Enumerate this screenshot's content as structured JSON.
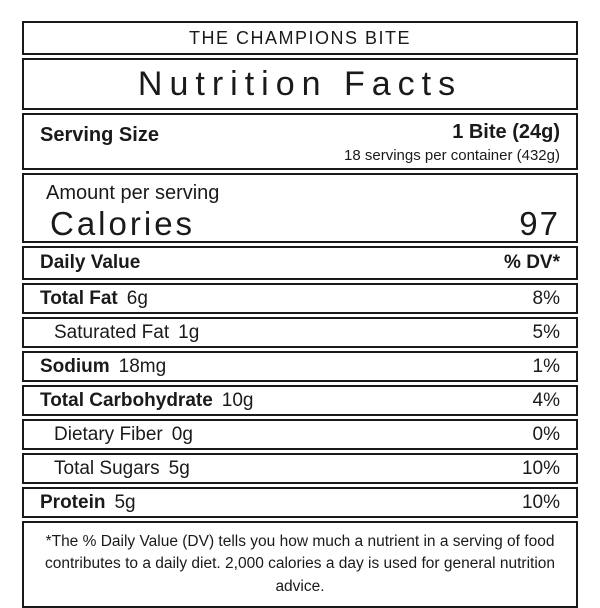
{
  "brand": {
    "title": "THE CHAMPIONS BITE"
  },
  "label": {
    "title": "Nutrition Facts",
    "serving": {
      "label": "Serving Size",
      "value": "1 Bite (24g)",
      "per_container": "18 servings per container (432g)"
    },
    "calories": {
      "amount_label": "Amount per serving",
      "label": "Calories",
      "value": "97"
    },
    "daily_value_header": {
      "label": "Daily Value",
      "dv_label": "% DV*"
    },
    "rows": [
      {
        "name": "Total Fat",
        "amount": "6g",
        "dv": "8%"
      },
      {
        "name": "Saturated Fat",
        "amount": "1g",
        "dv": "5%"
      },
      {
        "name": "Sodium",
        "amount": "18mg",
        "dv": "1%"
      },
      {
        "name": "Total Carbohydrate",
        "amount": "10g",
        "dv": "4%"
      },
      {
        "name": "Dietary Fiber",
        "amount": "0g",
        "dv": "0%"
      },
      {
        "name": "Total Sugars",
        "amount": "5g",
        "dv": "10%"
      },
      {
        "name": "Protein",
        "amount": "5g",
        "dv": "10%"
      }
    ],
    "footnote": "*The % Daily Value (DV) tells you how much a nutrient in a serving of food contributes to a daily diet. 2,000 calories a day is used for general nutrition advice."
  },
  "colors": {
    "text": "#1a1a1a",
    "border": "#1a1a1a",
    "background": "#ffffff"
  }
}
